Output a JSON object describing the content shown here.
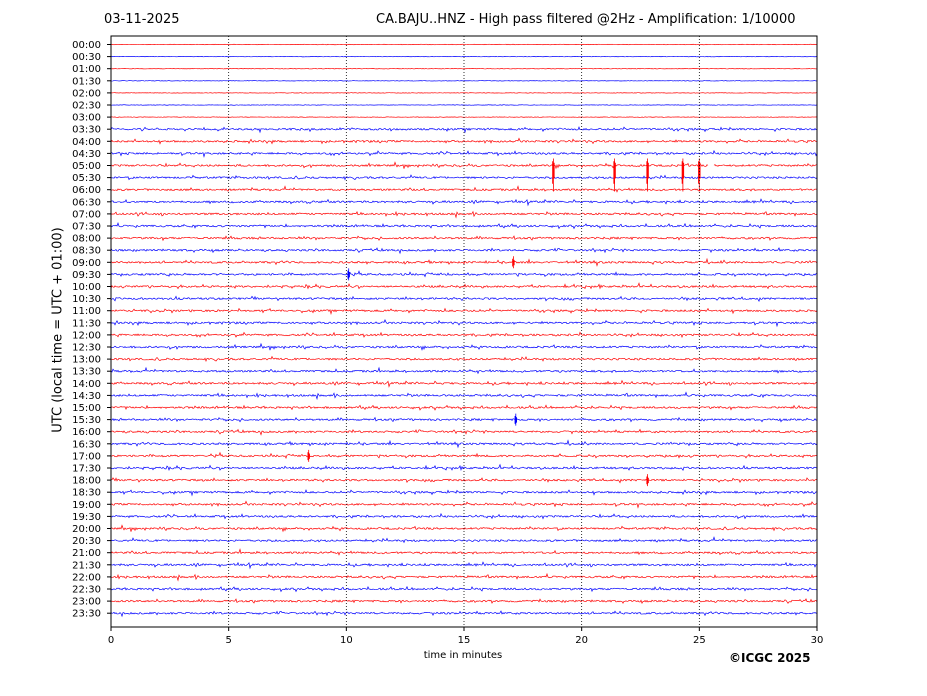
{
  "header": {
    "date": "03-11-2025",
    "title": "CA.BAJU..HNZ - High pass filtered @2Hz - Amplification: 1/10000"
  },
  "footer": {
    "copyright": "©ICGC 2025"
  },
  "chart_data": {
    "type": "line",
    "title": "CA.BAJU..HNZ - High pass filtered @2Hz - Amplification: 1/10000",
    "xlabel": "time in minutes",
    "ylabel": "UTC (local time = UTC + 01:00)",
    "xlim": [
      0,
      30
    ],
    "xticks": [
      0,
      5,
      10,
      15,
      20,
      25,
      30
    ],
    "vertical_gridlines": [
      5,
      10,
      15,
      20,
      25
    ],
    "grid": "vertical dotted",
    "row_colors": [
      "#ff0000",
      "#0000ff"
    ],
    "rows": [
      "00:00",
      "00:30",
      "01:00",
      "01:30",
      "02:00",
      "02:30",
      "03:00",
      "03:30",
      "04:00",
      "04:30",
      "05:00",
      "05:30",
      "06:00",
      "06:30",
      "07:00",
      "07:30",
      "08:00",
      "08:30",
      "09:00",
      "09:30",
      "10:00",
      "10:30",
      "11:00",
      "11:30",
      "12:00",
      "12:30",
      "13:00",
      "13:30",
      "14:00",
      "14:30",
      "15:00",
      "15:30",
      "16:00",
      "16:30",
      "17:00",
      "17:30",
      "18:00",
      "18:30",
      "19:00",
      "19:30",
      "20:00",
      "20:30",
      "21:00",
      "21:30",
      "22:00",
      "22:30",
      "23:00",
      "23:30"
    ],
    "events": [
      {
        "row": "05:00",
        "minute": 18.8
      },
      {
        "row": "05:00",
        "minute": 21.4
      },
      {
        "row": "05:00",
        "minute": 22.8
      },
      {
        "row": "05:00",
        "minute": 24.3
      },
      {
        "row": "05:00",
        "minute": 25.0
      },
      {
        "row": "09:00",
        "minute": 17.1
      },
      {
        "row": "09:30",
        "minute": 10.1
      },
      {
        "row": "15:30",
        "minute": 17.2
      },
      {
        "row": "17:00",
        "minute": 8.4
      },
      {
        "row": "18:00",
        "minute": 22.8
      }
    ],
    "gaps": [
      {
        "row": "05:00",
        "start_minute": 25.4,
        "end_minute": 25.6
      }
    ]
  }
}
